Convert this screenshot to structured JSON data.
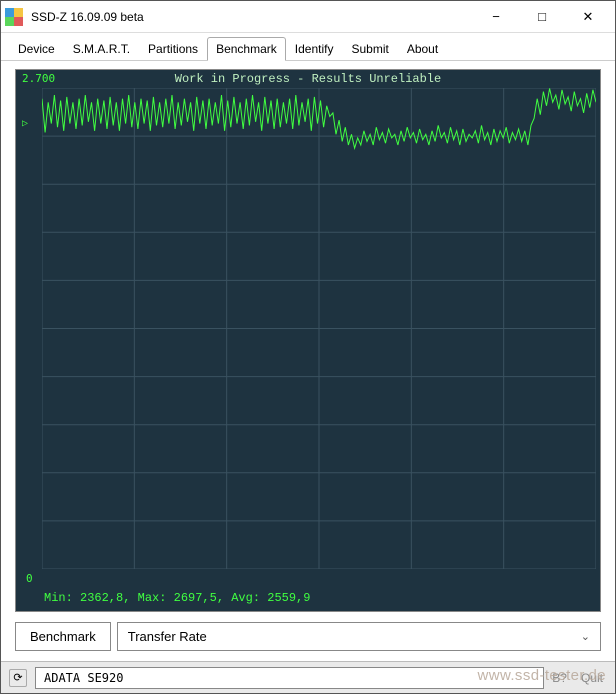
{
  "window": {
    "title": "SSD-Z 16.09.09 beta"
  },
  "tabs": {
    "items": [
      "Device",
      "S.M.A.R.T.",
      "Partitions",
      "Benchmark",
      "Identify",
      "Submit",
      "About"
    ],
    "active_index": 3
  },
  "chart": {
    "type": "line",
    "header": "Work in Progress - Results Unreliable",
    "y_max_label": "2.700",
    "y_min_label": "0",
    "y_marker": "▷",
    "ylim": [
      0,
      2700
    ],
    "y_gridlines": 10,
    "x_gridlines": 6,
    "background_color": "#1e3340",
    "grid_color": "#3a5260",
    "series_color": "#40ff40",
    "text_color": "#40ff40",
    "header_color": "#c0f0c0",
    "stats_text": "Min: 2362,8, Max: 2697,5, Avg: 2559,9",
    "stats": {
      "min": 2362.8,
      "max": 2697.5,
      "avg": 2559.9
    },
    "font_family": "Consolas",
    "font_size_labels": 11,
    "font_size_stats": 12,
    "series_values": [
      2640,
      2450,
      2620,
      2500,
      2660,
      2480,
      2630,
      2460,
      2650,
      2500,
      2620,
      2470,
      2640,
      2490,
      2660,
      2510,
      2620,
      2460,
      2640,
      2500,
      2630,
      2470,
      2650,
      2490,
      2620,
      2460,
      2640,
      2500,
      2660,
      2480,
      2620,
      2470,
      2640,
      2500,
      2630,
      2460,
      2650,
      2490,
      2620,
      2480,
      2640,
      2500,
      2660,
      2470,
      2620,
      2490,
      2640,
      2510,
      2620,
      2460,
      2650,
      2500,
      2630,
      2470,
      2640,
      2490,
      2620,
      2500,
      2660,
      2460,
      2630,
      2480,
      2650,
      2500,
      2620,
      2470,
      2640,
      2490,
      2660,
      2510,
      2620,
      2460,
      2650,
      2500,
      2630,
      2470,
      2640,
      2480,
      2620,
      2500,
      2640,
      2470,
      2660,
      2490,
      2620,
      2510,
      2640,
      2460,
      2650,
      2500,
      2630,
      2480,
      2600,
      2540,
      2560,
      2440,
      2520,
      2400,
      2480,
      2380,
      2440,
      2362,
      2420,
      2380,
      2460,
      2400,
      2440,
      2380,
      2480,
      2410,
      2450,
      2390,
      2470,
      2420,
      2440,
      2380,
      2460,
      2400,
      2480,
      2420,
      2450,
      2390,
      2470,
      2410,
      2440,
      2380,
      2460,
      2400,
      2490,
      2420,
      2450,
      2390,
      2480,
      2410,
      2460,
      2380,
      2470,
      2400,
      2440,
      2420,
      2460,
      2390,
      2490,
      2410,
      2450,
      2380,
      2470,
      2400,
      2460,
      2420,
      2480,
      2390,
      2450,
      2410,
      2470,
      2400,
      2460,
      2380,
      2490,
      2530,
      2640,
      2550,
      2680,
      2600,
      2697,
      2620,
      2660,
      2580,
      2690,
      2610,
      2650,
      2570,
      2680,
      2600,
      2640,
      2560,
      2670,
      2590,
      2690,
      2620
    ]
  },
  "controls": {
    "benchmark_label": "Benchmark",
    "select_value": "Transfer Rate"
  },
  "statusbar": {
    "device": "ADATA SE920",
    "right_hint": "B?",
    "quit_label": "Quit"
  },
  "watermark": "www.ssd-tester.de"
}
